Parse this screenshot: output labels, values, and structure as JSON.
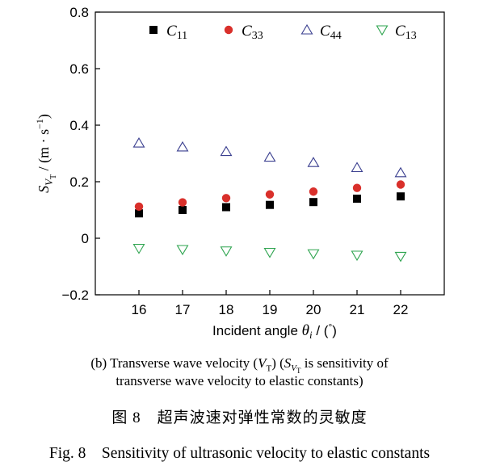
{
  "chart_data": {
    "type": "scatter",
    "x": [
      16,
      17,
      18,
      19,
      20,
      21,
      22
    ],
    "xlim": [
      15,
      23
    ],
    "ylim": [
      -0.2,
      0.8
    ],
    "x_ticks": [
      "16",
      "17",
      "18",
      "19",
      "20",
      "21",
      "22"
    ],
    "y_ticks": [
      "−0.2",
      "0",
      "0.2",
      "0.4",
      "0.6",
      "0.8"
    ],
    "y_tick_values": [
      -0.2,
      0,
      0.2,
      0.4,
      0.6,
      0.8
    ],
    "xlabel": "Incident angle θi / (°)",
    "ylabel": "SVT / (m · s−1)",
    "legend_position": "top",
    "grid": false,
    "series": [
      {
        "name": "C11",
        "marker": "square",
        "color": "#000000",
        "values": [
          0.088,
          0.1,
          0.11,
          0.118,
          0.128,
          0.14,
          0.148
        ]
      },
      {
        "name": "C33",
        "marker": "circle",
        "color": "#d9302b",
        "values": [
          0.112,
          0.127,
          0.142,
          0.155,
          0.165,
          0.178,
          0.19
        ]
      },
      {
        "name": "C44",
        "marker": "triangle-up",
        "color": "#3a3f8f",
        "values": [
          0.337,
          0.323,
          0.307,
          0.287,
          0.268,
          0.25,
          0.232
        ]
      },
      {
        "name": "C13",
        "marker": "triangle-down",
        "color": "#2ea44f",
        "values": [
          -0.036,
          -0.04,
          -0.045,
          -0.05,
          -0.055,
          -0.06,
          -0.064
        ]
      }
    ]
  },
  "caption": {
    "sub_line1": "(b) Transverse wave velocity (VT) (SVT is sensitivity of",
    "sub_line2": "transverse  wave velocity to elastic constants)",
    "figure_cn": "图 8　超声波速对弹性常数的灵敏度",
    "figure_en": "Fig. 8　Sensitivity of ultrasonic velocity to elastic constants"
  }
}
